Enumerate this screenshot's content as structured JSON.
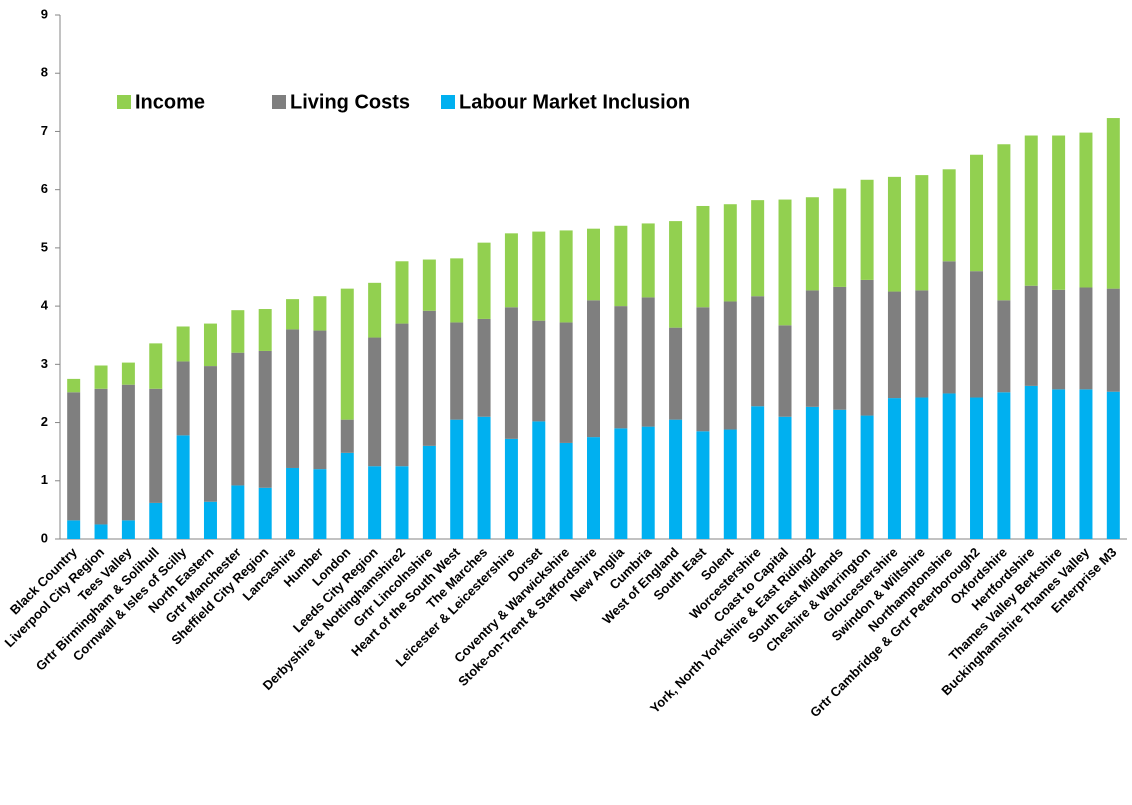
{
  "chart_data": {
    "type": "stacked_bar",
    "categories": [
      "Black Country",
      "Liverpool City Region",
      "Tees Valley",
      "Grtr Birmingham & Solihull",
      "Cornwall & Isles of Scilly",
      "North Eastern",
      "Grtr Manchester",
      "Sheffield City Region",
      "Lancashire",
      "Humber",
      "London",
      "Leeds City Region",
      "Derbyshire & Nottinghamshire2",
      "Grtr Lincolnshire",
      "Heart of the South West",
      "The Marches",
      "Leicester & Leicestershire",
      "Dorset",
      "Coventry & Warwickshire",
      "Stoke-on-Trent & Staffordshire",
      "New Anglia",
      "Cumbria",
      "West of England",
      "South East",
      "Solent",
      "Worcestershire",
      "Coast to Capital",
      "York, North Yorkshire & East Riding2",
      "South East Midlands",
      "Cheshire & Warrington",
      "Gloucestershire",
      "Swindon & Wiltshire",
      "Northamptonshire",
      "Grtr Cambridge & Grtr Peterborough2",
      "Oxfordshire",
      "Hertfordshire",
      "Thames Valley Berkshire",
      "Buckinghamshire Thames Valley",
      "Enterprise M3"
    ],
    "series": [
      {
        "name": "Income",
        "color": "#92d050",
        "values": [
          0.23,
          0.4,
          0.38,
          0.78,
          0.6,
          0.73,
          0.73,
          0.72,
          0.52,
          0.59,
          2.25,
          0.94,
          1.07,
          0.88,
          1.1,
          1.31,
          1.27,
          1.53,
          1.58,
          1.23,
          1.38,
          1.27,
          1.83,
          1.74,
          1.67,
          1.65,
          2.16,
          1.6,
          1.69,
          1.72,
          1.97,
          1.98,
          1.58,
          2.0,
          2.68,
          2.58,
          2.65,
          2.66,
          2.93
        ]
      },
      {
        "name": "Living Costs",
        "color": "#7f7f7f",
        "values": [
          2.2,
          2.33,
          2.33,
          1.96,
          1.27,
          2.33,
          2.28,
          2.35,
          2.38,
          2.38,
          0.57,
          2.21,
          2.45,
          2.32,
          1.67,
          1.68,
          2.26,
          1.73,
          2.07,
          2.35,
          2.1,
          2.22,
          1.58,
          2.13,
          2.2,
          1.89,
          1.57,
          2.0,
          2.11,
          2.33,
          1.83,
          1.84,
          2.27,
          2.17,
          1.58,
          1.72,
          1.71,
          1.75,
          1.77
        ]
      },
      {
        "name": "Labour Market Inclusion",
        "color": "#00b0f0",
        "values": [
          0.32,
          0.25,
          0.32,
          0.62,
          1.78,
          0.64,
          0.92,
          0.88,
          1.22,
          1.2,
          1.48,
          1.25,
          1.25,
          1.6,
          2.05,
          2.1,
          1.72,
          2.02,
          1.65,
          1.75,
          1.9,
          1.93,
          2.05,
          1.85,
          1.88,
          2.28,
          2.1,
          2.27,
          2.22,
          2.12,
          2.42,
          2.43,
          2.5,
          2.43,
          2.52,
          2.63,
          2.57,
          2.57,
          2.53
        ]
      }
    ],
    "ylim": [
      0,
      9
    ],
    "yticks": [
      0,
      1,
      2,
      3,
      4,
      5,
      6,
      7,
      8,
      9
    ],
    "legend": "top-left"
  }
}
